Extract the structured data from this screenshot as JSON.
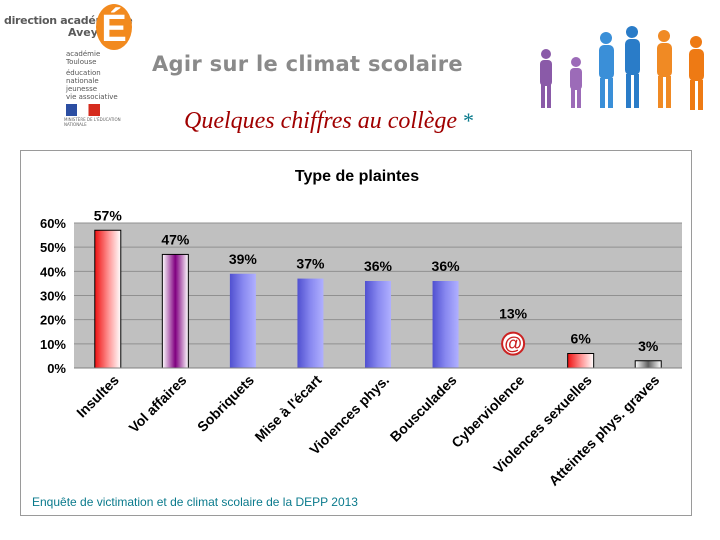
{
  "header": {
    "org_line1": "direction académique",
    "org_line2": "Aveyron",
    "org_badge": "É",
    "org_sub": [
      "académie",
      "Toulouse",
      "éducation",
      "nationale",
      "jeunesse",
      "vie associative"
    ],
    "rf_caption": "MINISTÈRE DE L'ÉDUCATION NATIONALE",
    "banner": "Agir sur le climat scolaire",
    "subtitle": "Quelques chiffres au collège",
    "subtitle_star": "*"
  },
  "colors": {
    "title_red": "#a00000",
    "plot_bg": "#c0c0c0",
    "bar_red": "#ee1111",
    "bar_purple": "#800080",
    "bar_blue": "#7070e0",
    "bar_gray": "#808080",
    "teal": "#0a7a8c"
  },
  "chart_data": {
    "type": "bar",
    "title": "Type de plaintes",
    "categories": [
      "Insultes",
      "Vol affaires",
      "Sobriquets",
      "Mise à l'écart",
      "Violences phys.",
      "Bousculades",
      "Cyberviolence",
      "Violences sexuelles",
      "Atteintes phys. graves"
    ],
    "values": [
      57,
      47,
      39,
      37,
      36,
      36,
      13,
      6,
      3
    ],
    "data_labels": [
      "57%",
      "47%",
      "39%",
      "37%",
      "36%",
      "36%",
      "13%",
      "6%",
      "3%"
    ],
    "bar_styles": [
      "red",
      "purple",
      "blue",
      "blue",
      "blue",
      "blue",
      "at-icon",
      "red",
      "gray"
    ],
    "y_ticks": [
      "0%",
      "10%",
      "20%",
      "30%",
      "40%",
      "50%",
      "60%"
    ],
    "ylim": [
      0,
      60
    ],
    "grid": true,
    "source": "Enquête de victimation et de climat scolaire de la DEPP 2013"
  }
}
